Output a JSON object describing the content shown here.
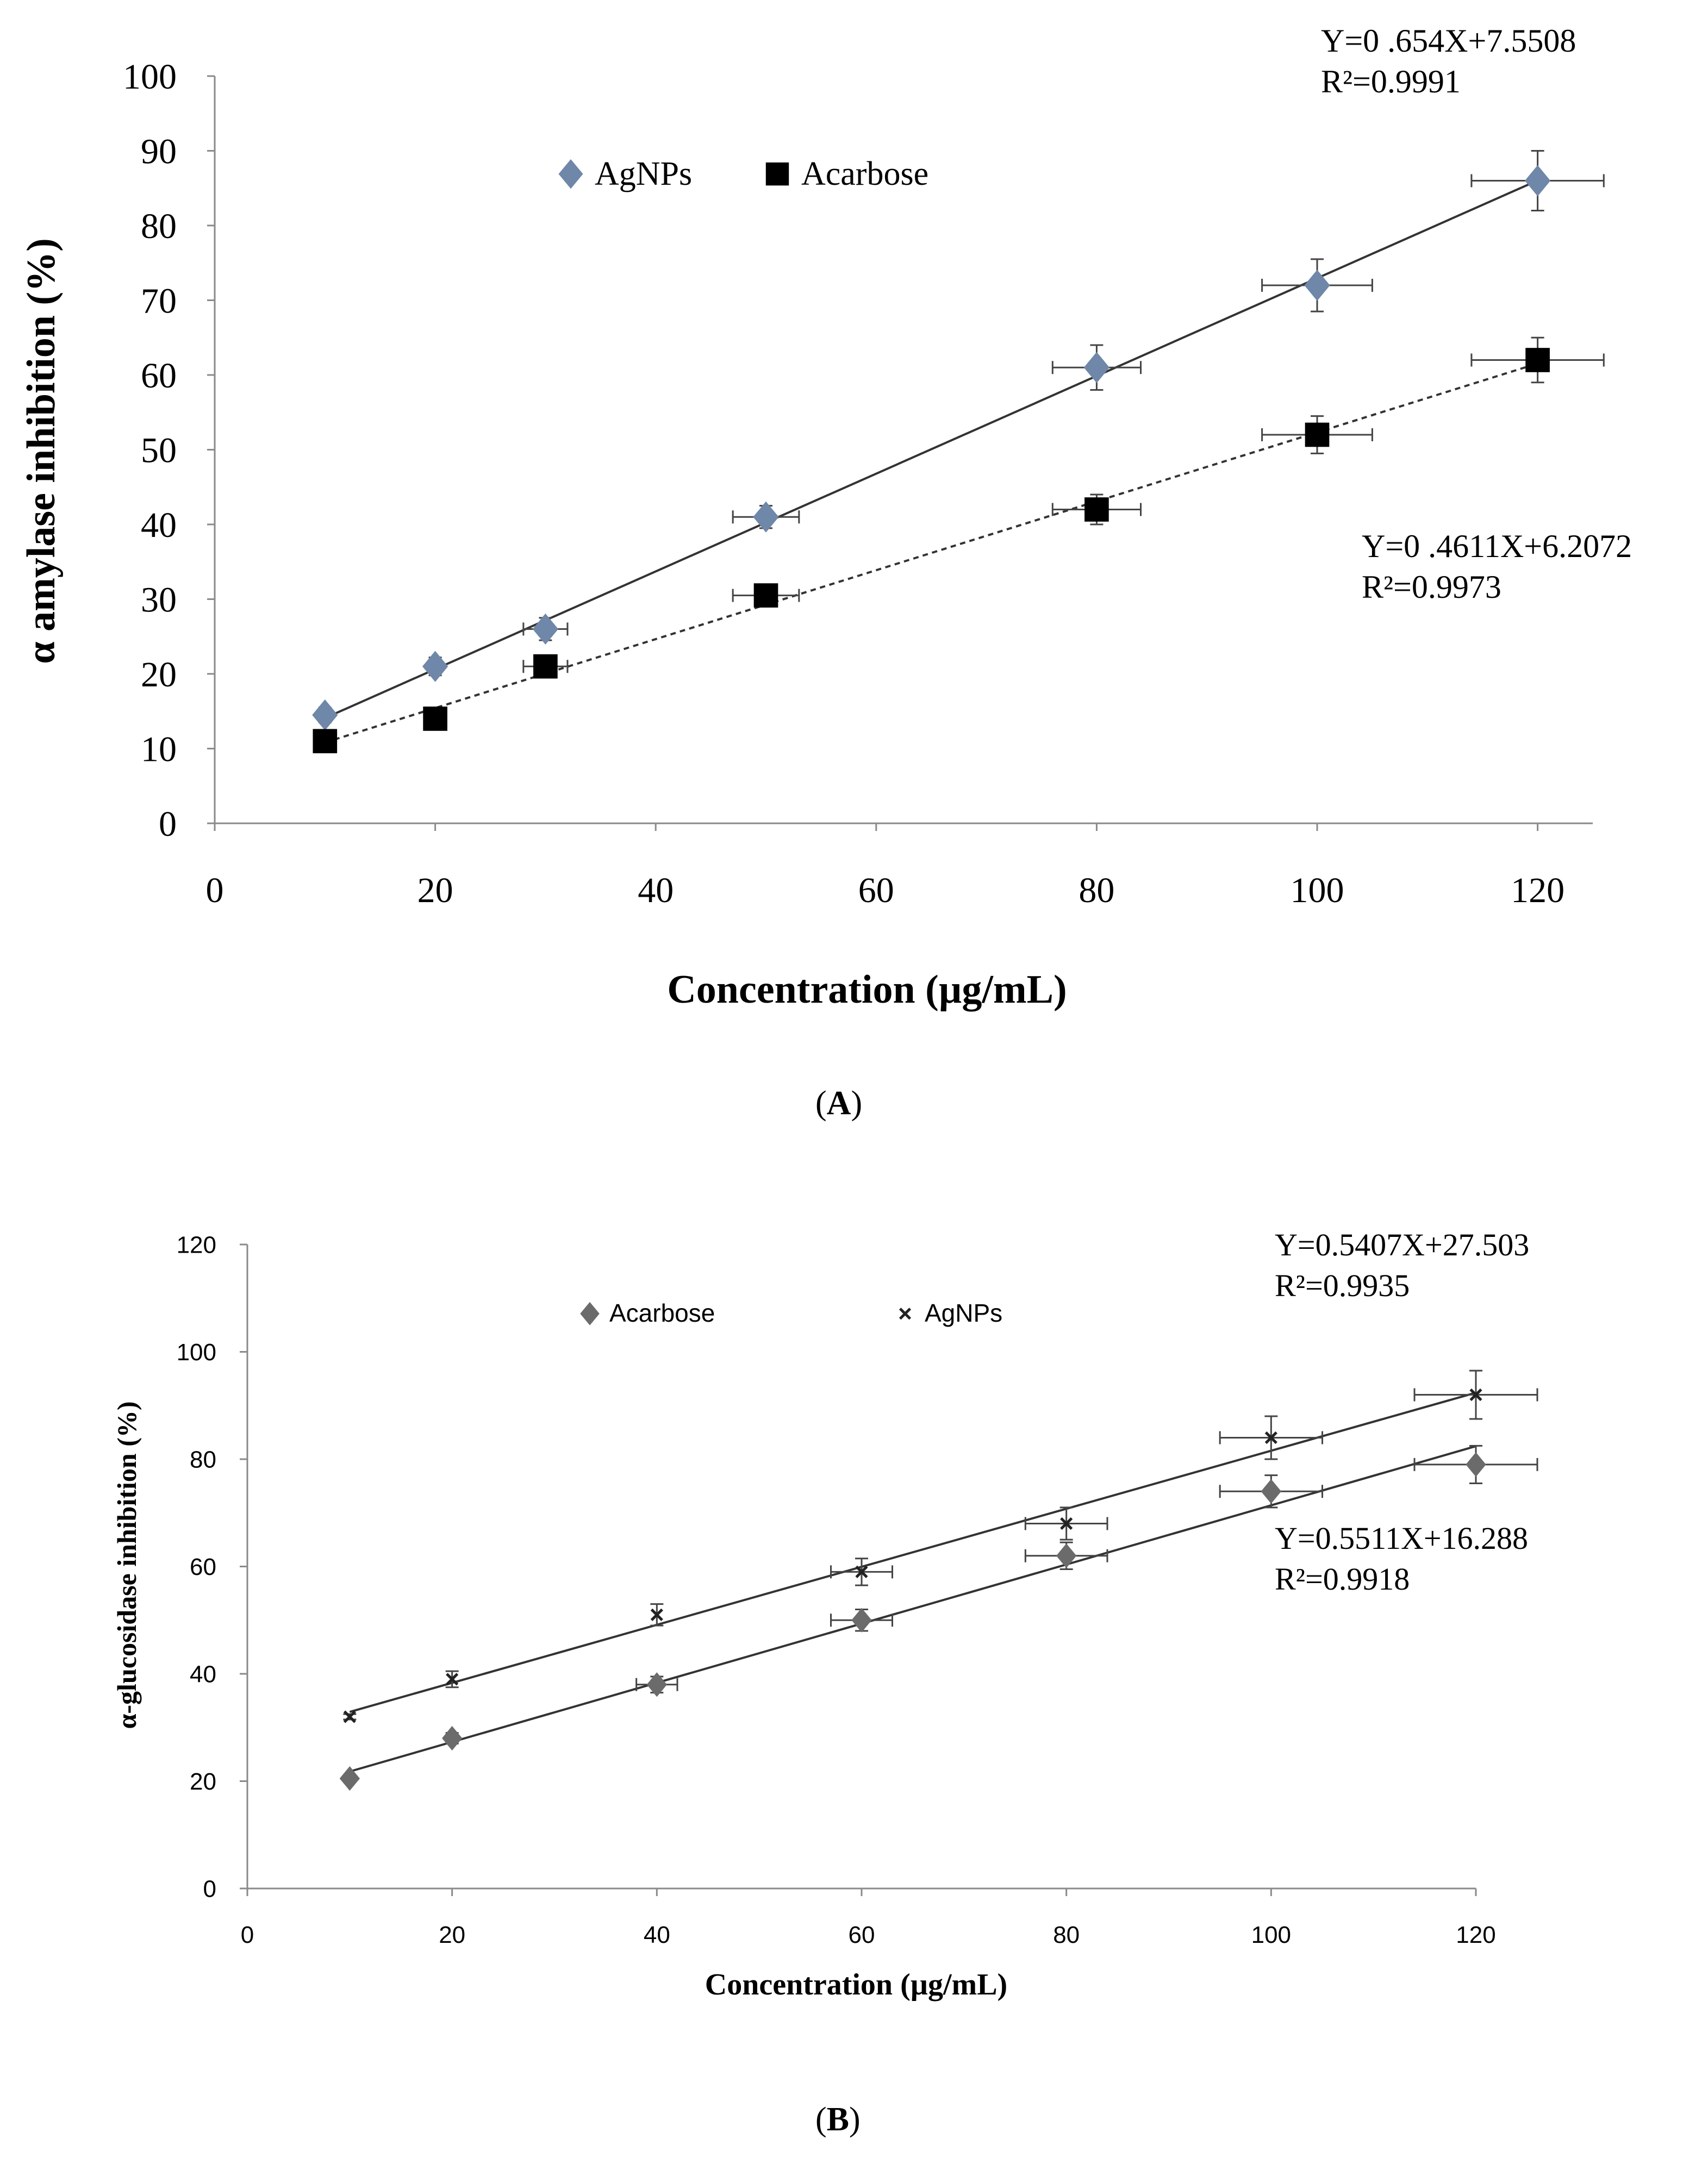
{
  "chart_data": [
    {
      "id": "A",
      "type": "scatter",
      "panel_label": "A",
      "title": "",
      "xlabel": "Concentration (µg/mL)",
      "ylabel": "α amylase inhibition (%)",
      "xlim": [
        0,
        125
      ],
      "ylim": [
        0,
        100
      ],
      "xticks": [
        0,
        20,
        40,
        60,
        80,
        100,
        120
      ],
      "yticks": [
        0,
        10,
        20,
        30,
        40,
        50,
        60,
        70,
        80,
        90,
        100
      ],
      "legend": {
        "placement": "top-left",
        "entries": [
          "AgNPs",
          "Acarbose"
        ]
      },
      "series": [
        {
          "name": "AgNPs",
          "marker": "diamond",
          "color": "#6f87a8",
          "x": [
            10,
            20,
            30,
            50,
            80,
            100,
            120
          ],
          "y": [
            14.5,
            21,
            26,
            41,
            61,
            72,
            86
          ],
          "yerr": [
            1,
            1.2,
            1.5,
            1.5,
            3,
            3.5,
            4
          ],
          "xerr": [
            0,
            0,
            2,
            3,
            4,
            5,
            6
          ],
          "fit": {
            "slope": 0.654,
            "intercept": 7.5508,
            "style": "solid"
          },
          "equation": "Y=0 .654X+7.5508",
          "r2": "R²=0.9991"
        },
        {
          "name": "Acarbose",
          "marker": "square",
          "color": "#000000",
          "x": [
            10,
            20,
            30,
            50,
            80,
            100,
            120
          ],
          "y": [
            11,
            14,
            21,
            30.5,
            42,
            52,
            62
          ],
          "yerr": [
            1,
            1,
            1.5,
            1.5,
            2,
            2.5,
            3
          ],
          "xerr": [
            0,
            0,
            2,
            3,
            4,
            5,
            6
          ],
          "fit": {
            "slope": 0.4611,
            "intercept": 6.2072,
            "style": "dashed"
          },
          "equation": "Y=0 .4611X+6.2072",
          "r2": "R²=0.9973"
        }
      ]
    },
    {
      "id": "B",
      "type": "scatter",
      "panel_label": "B",
      "title": "",
      "xlabel": "Concentration  (µg/mL)",
      "ylabel": "α-glucosidase inhibition (%)",
      "xlim": [
        0,
        120
      ],
      "ylim": [
        0,
        120
      ],
      "xticks": [
        0,
        20,
        40,
        60,
        80,
        100,
        120
      ],
      "yticks": [
        0,
        20,
        40,
        60,
        80,
        100,
        120
      ],
      "legend": {
        "placement": "top-left",
        "entries": [
          "Acarbose",
          "AgNPs"
        ]
      },
      "series": [
        {
          "name": "Acarbose",
          "marker": "diamond",
          "color": "#6b6b6b",
          "x": [
            10,
            20,
            40,
            60,
            80,
            100,
            120
          ],
          "y": [
            20.5,
            28,
            38,
            50,
            62,
            74,
            79
          ],
          "yerr": [
            0.5,
            1,
            1.5,
            2,
            2.5,
            3,
            3.5
          ],
          "xerr": [
            0,
            0,
            2,
            3,
            4,
            5,
            6
          ],
          "fit": {
            "slope": 0.5511,
            "intercept": 16.288,
            "style": "solid"
          },
          "equation": "Y=0.5511X+16.288",
          "r2": "R²=0.9918"
        },
        {
          "name": "AgNPs",
          "marker": "x",
          "color": "#222222",
          "x": [
            10,
            20,
            40,
            60,
            80,
            100,
            120
          ],
          "y": [
            32,
            39,
            51,
            59,
            68,
            84,
            92
          ],
          "yerr": [
            0.5,
            1.5,
            2,
            2.5,
            3,
            4,
            4.5
          ],
          "xerr": [
            0,
            0,
            0,
            3,
            4,
            5,
            6
          ],
          "fit": {
            "slope": 0.5407,
            "intercept": 27.503,
            "style": "solid"
          },
          "equation": "Y=0.5407X+27.503",
          "r2": "R²=0.9935"
        }
      ]
    }
  ]
}
